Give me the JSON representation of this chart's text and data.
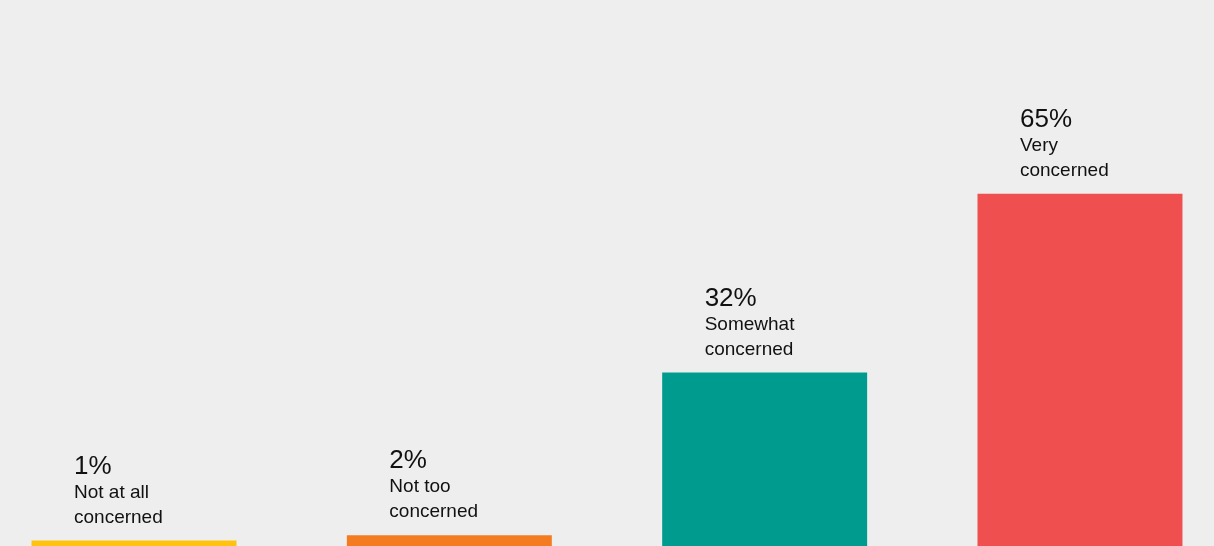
{
  "chart_data": {
    "type": "bar",
    "categories": [
      "Not at all concerned",
      "Not too concerned",
      "Somewhat concerned",
      "Very concerned"
    ],
    "values": [
      1,
      2,
      32,
      65
    ],
    "value_labels": [
      "1%",
      "2%",
      "32%",
      "65%"
    ],
    "colors": [
      "#ffc20e",
      "#f47b20",
      "#009b8f",
      "#ef4f4f"
    ]
  }
}
